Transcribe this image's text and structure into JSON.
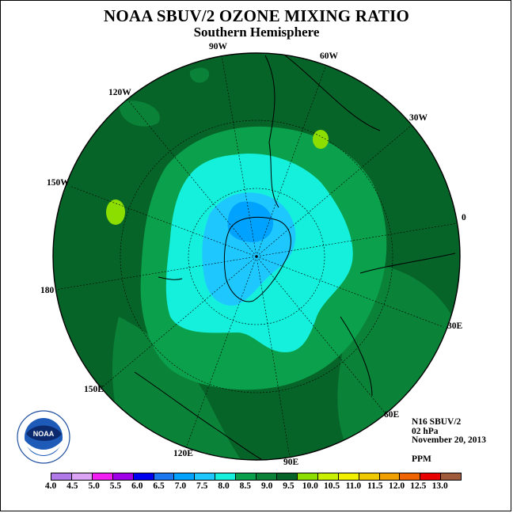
{
  "title": "NOAA SBUV/2 OZONE MIXING RATIO",
  "subtitle": "Southern Hemisphere",
  "logo": {
    "text": "NOAA",
    "ring_text": "NATIONAL OCEANIC AND ATMOSPHERIC ADMINISTRATION · U.S. DEPARTMENT OF COMMERCE"
  },
  "longitude_labels": [
    "90W",
    "60W",
    "30W",
    "0",
    "30E",
    "60E",
    "90E",
    "120E",
    "150E",
    "180",
    "150W",
    "120W"
  ],
  "info": {
    "satellite": "N16 SBUV/2",
    "level": "02 hPa",
    "date": "November 20, 2013",
    "units": "PPM"
  },
  "colorbar": {
    "colors": [
      "#b07ae8",
      "#dca4f4",
      "#f21ff2",
      "#a000e8",
      "#0000f0",
      "#1c78f0",
      "#00a2ff",
      "#1ec8ff",
      "#14f0dc",
      "#0aa04c",
      "#0a8238",
      "#066428",
      "#8cde00",
      "#c8f000",
      "#f0f000",
      "#f0c800",
      "#f0a000",
      "#f06400",
      "#e80000",
      "#a05a3c"
    ],
    "ticks": [
      "4.0",
      "4.5",
      "5.0",
      "5.5",
      "6.0",
      "6.5",
      "7.0",
      "7.5",
      "8.0",
      "8.5",
      "9.0",
      "9.5",
      "10.0",
      "10.5",
      "11.0",
      "11.5",
      "12.0",
      "12.5",
      "13.0"
    ]
  },
  "map_colors": {
    "dark_green": "#066428",
    "mid_green": "#0a8238",
    "green": "#0aa04c",
    "cyan": "#14f0dc",
    "light_blue": "#1ec8ff",
    "blue": "#00a2ff",
    "lime": "#8cde00"
  }
}
